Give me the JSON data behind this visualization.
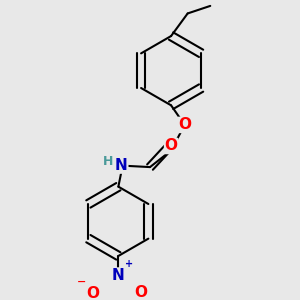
{
  "bg_color": "#e8e8e8",
  "bond_color": "#000000",
  "bond_width": 1.5,
  "atom_colors": {
    "O": "#ff0000",
    "N": "#0000bb",
    "H": "#4a9a9a",
    "C": "#000000"
  },
  "font_size": 10,
  "fig_size": [
    3.0,
    3.0
  ],
  "dpi": 100
}
